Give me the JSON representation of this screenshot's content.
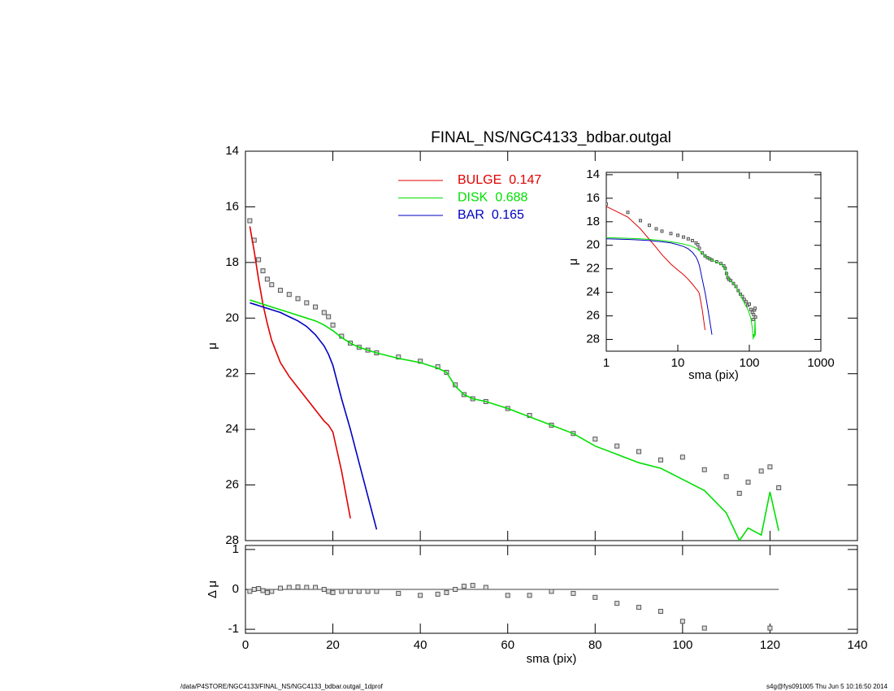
{
  "title": "FINAL_NS/NGC4133_bdbar.outgal",
  "footer": {
    "left": "/data/P4STORE/NGC4133/FINAL_NS/NGC4133_bdbar.outgal_1dprof",
    "right": "s4g@fys091005  Thu Jun  5 10:16:50 2014"
  },
  "chart_data": [
    {
      "type": "line",
      "ylabel": "μ",
      "x": [
        1,
        2,
        3,
        4,
        5,
        6,
        8,
        10,
        12,
        14,
        16,
        18,
        19,
        20,
        22,
        24,
        26,
        28,
        30,
        35,
        40,
        44,
        46,
        48,
        50,
        52,
        55,
        60,
        65,
        70,
        75,
        80,
        85,
        90,
        95,
        100,
        105,
        110,
        113,
        115,
        118,
        120,
        122
      ],
      "points": {
        "color": "#555555",
        "values": [
          16.5,
          17.2,
          17.9,
          18.3,
          18.6,
          18.8,
          19.0,
          19.15,
          19.3,
          19.45,
          19.6,
          19.8,
          19.95,
          20.25,
          20.65,
          20.9,
          21.05,
          21.15,
          21.25,
          21.4,
          21.55,
          21.75,
          21.95,
          22.4,
          22.75,
          22.9,
          23.0,
          23.25,
          23.5,
          23.85,
          24.15,
          24.35,
          24.6,
          24.8,
          25.1,
          25.0,
          25.45,
          25.7,
          26.3,
          25.9,
          25.5,
          25.35,
          26.1
        ]
      },
      "series": [
        {
          "name": "BULGE",
          "fraction": 0.147,
          "color": "#e00000",
          "values": [
            16.7,
            17.6,
            18.6,
            19.5,
            20.2,
            20.8,
            21.6,
            22.1,
            22.5,
            22.9,
            23.3,
            23.7,
            23.85,
            24.1,
            25.5,
            27.2,
            null,
            null,
            null,
            null,
            null,
            null,
            null,
            null,
            null,
            null,
            null,
            null,
            null,
            null,
            null,
            null,
            null,
            null,
            null,
            null,
            null,
            null,
            null,
            null,
            null,
            null,
            null
          ]
        },
        {
          "name": "DISK",
          "fraction": 0.688,
          "color": "#00e000",
          "values": [
            19.35,
            19.4,
            19.45,
            19.5,
            19.55,
            19.6,
            19.7,
            19.8,
            19.9,
            20.0,
            20.1,
            20.25,
            20.35,
            20.45,
            20.7,
            20.9,
            21.05,
            21.15,
            21.25,
            21.45,
            21.6,
            21.8,
            21.95,
            22.45,
            22.75,
            22.9,
            23.0,
            23.25,
            23.55,
            23.85,
            24.15,
            24.6,
            24.9,
            25.2,
            25.4,
            25.8,
            26.2,
            27.0,
            28.0,
            27.55,
            27.8,
            26.25,
            27.65
          ]
        },
        {
          "name": "BAR",
          "fraction": 0.165,
          "color": "#0000c0",
          "values": [
            19.45,
            19.5,
            19.55,
            19.6,
            19.65,
            19.7,
            19.8,
            19.95,
            20.1,
            20.3,
            20.6,
            21.0,
            21.3,
            21.7,
            22.9,
            24.0,
            25.2,
            26.4,
            27.6,
            null,
            null,
            null,
            null,
            null,
            null,
            null,
            null,
            null,
            null,
            null,
            null,
            null,
            null,
            null,
            null,
            null,
            null,
            null,
            null,
            null,
            null,
            null,
            null
          ]
        }
      ],
      "xlim": [
        0,
        140
      ],
      "xticks": [
        0,
        20,
        40,
        60,
        80,
        100,
        120,
        140
      ],
      "ylim": [
        28,
        14
      ],
      "yticks": [
        14,
        16,
        18,
        20,
        22,
        24,
        26,
        28
      ]
    },
    {
      "type": "scatter",
      "ylabel": "Δ μ",
      "xlabel": "sma (pix)",
      "color": "#555555",
      "values": [
        -0.05,
        0.0,
        0.02,
        -0.03,
        -0.08,
        -0.05,
        0.03,
        0.05,
        0.06,
        0.05,
        0.05,
        0.0,
        -0.05,
        -0.08,
        -0.05,
        -0.05,
        -0.05,
        -0.05,
        -0.05,
        -0.1,
        -0.15,
        -0.12,
        -0.08,
        0.0,
        0.08,
        0.1,
        0.05,
        -0.15,
        -0.15,
        -0.05,
        -0.1,
        -0.2,
        -0.35,
        -0.45,
        -0.55,
        -0.8,
        -0.97,
        null,
        null,
        null,
        null,
        -0.97,
        null
      ],
      "xlim": [
        0,
        140
      ],
      "xticks": [
        0,
        20,
        40,
        60,
        80,
        100,
        120,
        140
      ],
      "ylim": [
        -1.1,
        1.1
      ],
      "yticks": [
        -1,
        0,
        1
      ]
    },
    {
      "type": "line",
      "xscale": "log",
      "ylabel": "μ",
      "xlabel": "sma (pix)",
      "xlim": [
        1,
        1000
      ],
      "xticks": [
        1,
        10,
        100,
        1000
      ],
      "ylim": [
        29,
        13.8
      ],
      "yticks": [
        14,
        16,
        18,
        20,
        22,
        24,
        26,
        28
      ]
    }
  ]
}
